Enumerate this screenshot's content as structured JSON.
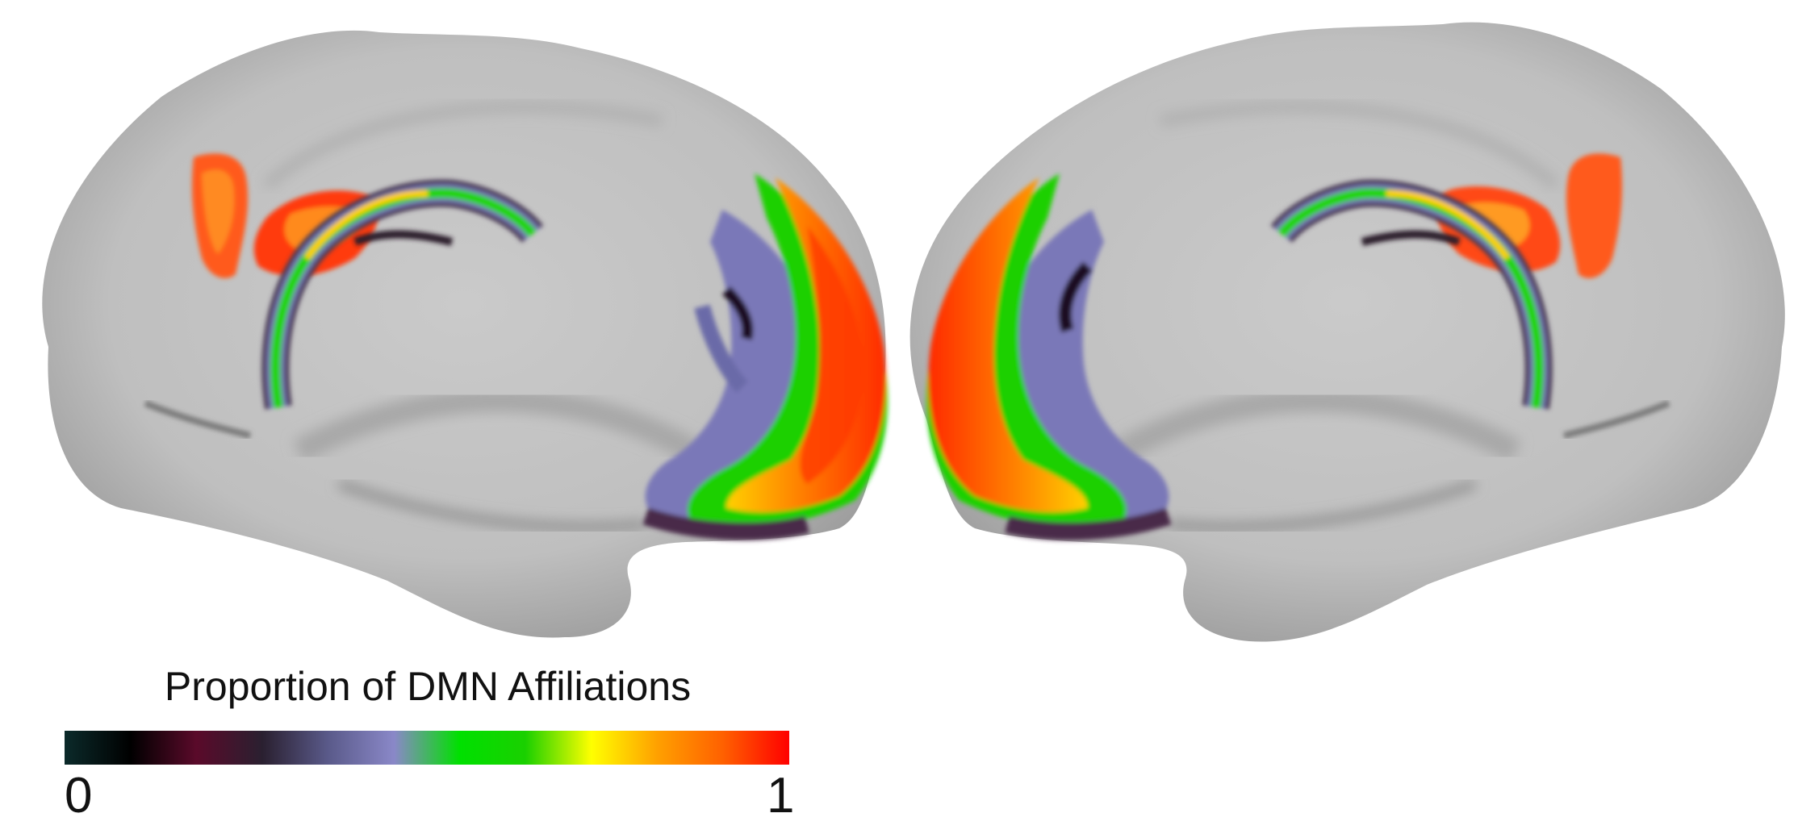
{
  "legend": {
    "title": "Proportion of DMN Affiliations",
    "min_label": "0",
    "max_label": "1",
    "colormap": [
      "#0b2a2a",
      "#000000",
      "#5a0a2a",
      "#2a2030",
      "#5a5a8a",
      "#8a88c8",
      "#00e000",
      "#1ad000",
      "#ffff00",
      "#ffa000",
      "#ff6000",
      "#ff0000"
    ]
  },
  "colors": {
    "background": "#ffffff",
    "cortex": "#c4c4c4",
    "cortex_shadow": "#7a7a7a"
  },
  "panels": [
    "left-hemisphere-medial",
    "right-hemisphere-medial"
  ]
}
